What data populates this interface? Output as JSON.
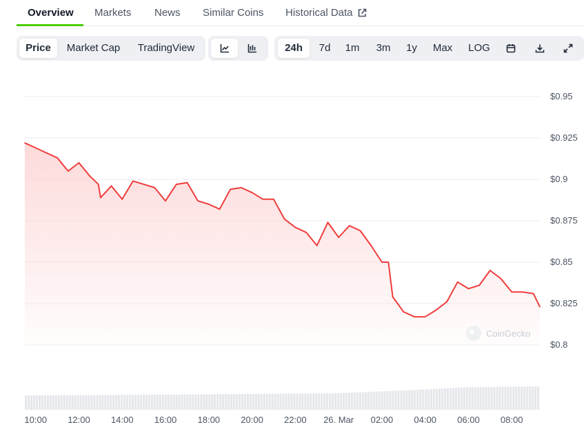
{
  "tabs": [
    {
      "label": "Overview",
      "active": true
    },
    {
      "label": "Markets"
    },
    {
      "label": "News"
    },
    {
      "label": "Similar Coins"
    },
    {
      "label": "Historical Data",
      "icon": "external-link-icon"
    }
  ],
  "toolbar": {
    "metric_buttons": [
      "Price",
      "Market Cap",
      "TradingView"
    ],
    "metric_selected": "Price",
    "chart_type_icons": [
      "line-chart-icon",
      "candlestick-chart-icon"
    ],
    "chart_type_selected": "line-chart-icon",
    "range_buttons": [
      "24h",
      "7d",
      "1m",
      "3m",
      "1y",
      "Max",
      "LOG"
    ],
    "range_selected": "24h",
    "tool_icons": [
      "calendar-icon",
      "download-icon",
      "fullscreen-icon"
    ]
  },
  "watermark": "CoinGecko",
  "colors": {
    "line": "#ef3c3c",
    "fill": "#fdd6d6",
    "grid": "#eceef1",
    "volume": "#e5e7eb",
    "accent": "#4bcc00"
  },
  "chart_data": {
    "type": "area",
    "y_axis": {
      "ticks": [
        "$0.95",
        "$0.925",
        "$0.9",
        "$0.875",
        "$0.85",
        "$0.825",
        "$0.8"
      ],
      "range": [
        0.8,
        0.95
      ],
      "position": "right"
    },
    "x_axis": {
      "ticks": [
        "10:00",
        "12:00",
        "14:00",
        "16:00",
        "18:00",
        "20:00",
        "22:00",
        "26. Mar",
        "02:00",
        "04:00",
        "06:00",
        "08:00"
      ]
    },
    "grid": true,
    "series": [
      {
        "t": [
          9.5,
          10.0,
          10.5,
          11.0,
          11.5,
          12.0,
          12.5,
          12.9,
          13.0,
          13.5,
          14.0,
          14.5,
          15.0,
          15.5,
          16.0,
          16.5,
          17.0,
          17.5,
          18.0,
          18.5,
          19.0,
          19.5,
          20.0,
          20.5,
          21.0,
          21.5,
          22.0,
          22.5,
          23.0,
          23.5,
          24.0,
          24.5,
          25.0,
          25.5,
          26.0,
          26.3,
          26.5,
          27.0,
          27.5,
          28.0,
          28.5,
          29.0,
          29.5,
          30.0,
          30.5,
          31.0,
          31.5,
          32.0,
          32.5,
          33.0,
          33.3
        ],
        "values": [
          0.922,
          0.919,
          0.916,
          0.913,
          0.905,
          0.91,
          0.902,
          0.897,
          0.889,
          0.896,
          0.888,
          0.899,
          0.897,
          0.895,
          0.887,
          0.897,
          0.898,
          0.887,
          0.885,
          0.882,
          0.894,
          0.895,
          0.892,
          0.888,
          0.888,
          0.876,
          0.871,
          0.868,
          0.86,
          0.874,
          0.865,
          0.872,
          0.869,
          0.86,
          0.85,
          0.85,
          0.829,
          0.82,
          0.817,
          0.817,
          0.821,
          0.826,
          0.838,
          0.834,
          0.836,
          0.845,
          0.84,
          0.832,
          0.832,
          0.831,
          0.823
        ]
      }
    ],
    "volume": {
      "t": [
        9.5,
        18.0,
        24.0,
        27.0,
        30.0,
        33.3
      ],
      "values": [
        0.52,
        0.56,
        0.6,
        0.7,
        0.82,
        0.85
      ]
    }
  }
}
